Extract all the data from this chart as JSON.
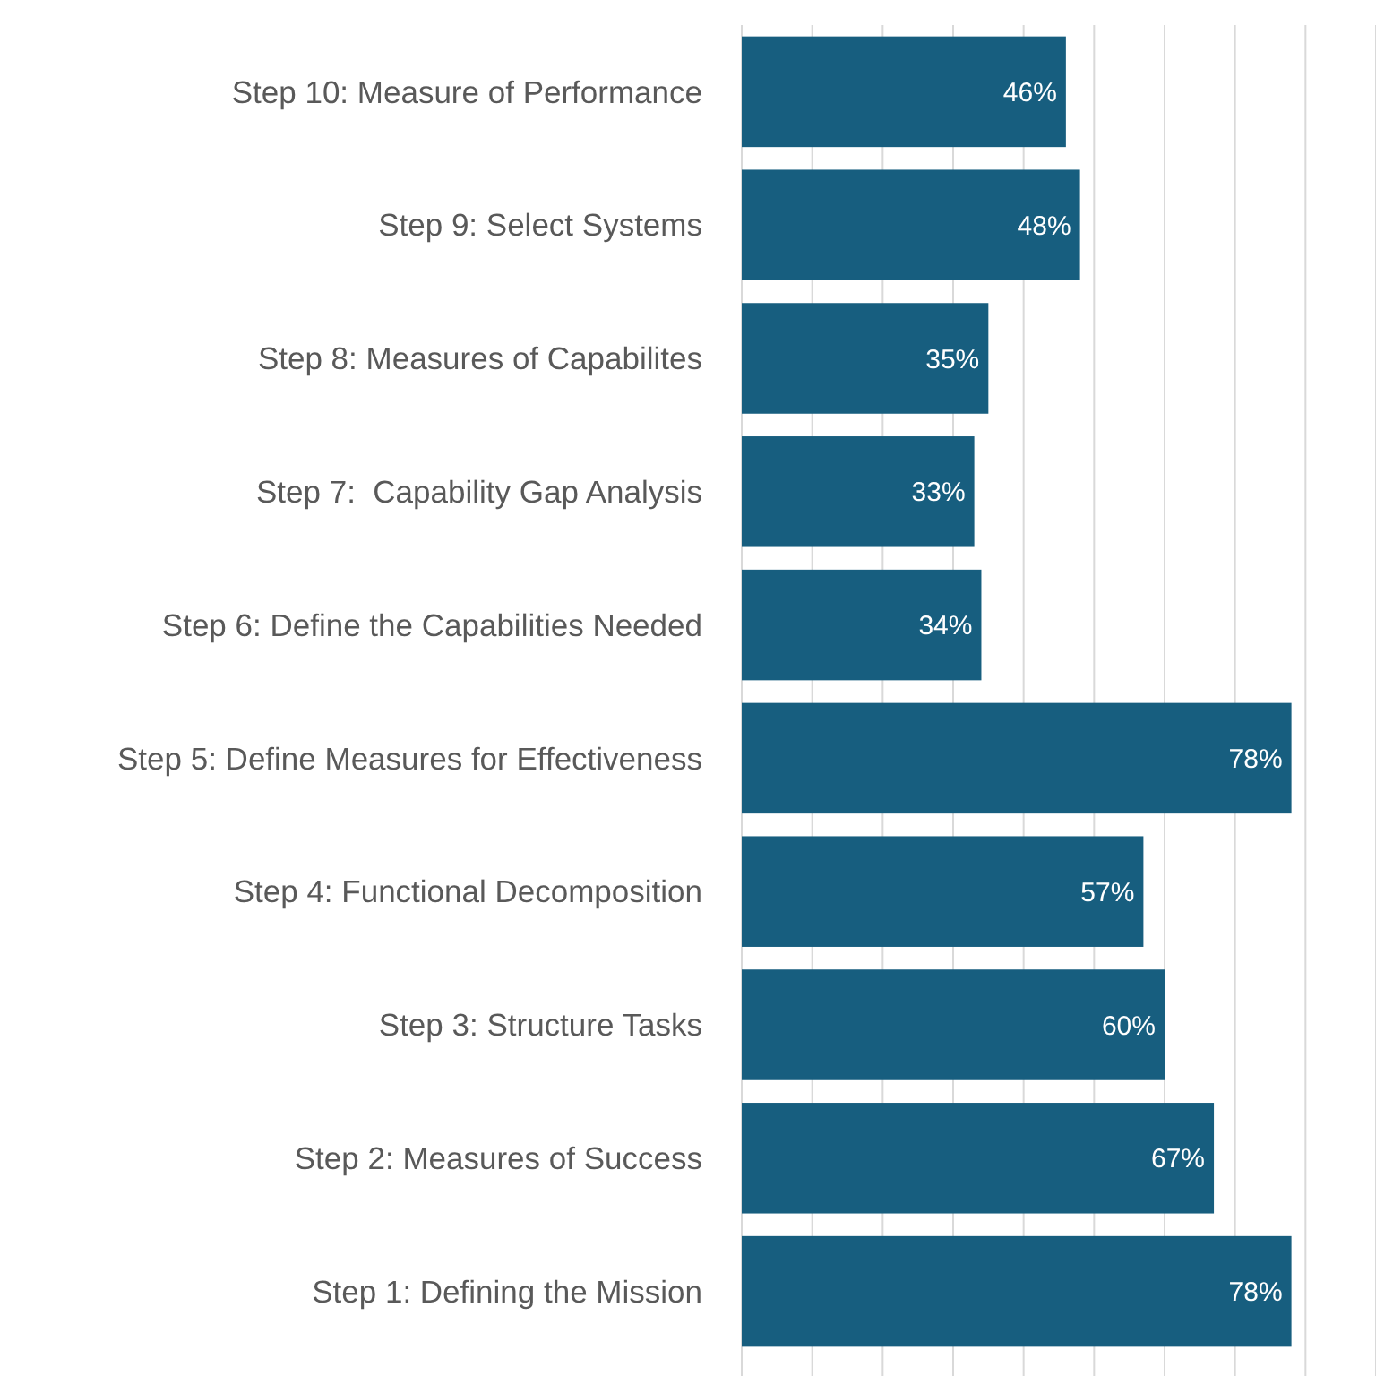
{
  "chart_data": {
    "type": "bar",
    "orientation": "horizontal",
    "categories": [
      "Step 10: Measure of Performance",
      "Step 9: Select Systems",
      "Step 8: Measures of Capabilites",
      "Step 7:  Capability Gap Analysis",
      "Step 6: Define the Capabilities Needed",
      "Step 5: Define Measures for Effectiveness",
      "Step 4: Functional Decomposition",
      "Step 3: Structure Tasks",
      "Step 2: Measures of Success",
      "Step 1: Defining the Mission"
    ],
    "values": [
      46,
      48,
      35,
      33,
      34,
      78,
      57,
      60,
      67,
      78
    ],
    "value_labels": [
      "46%",
      "48%",
      "35%",
      "33%",
      "34%",
      "78%",
      "57%",
      "60%",
      "67%",
      "78%"
    ],
    "color": "#175e7f",
    "xlim": [
      0,
      90
    ],
    "xticks": [
      {
        "value": 0,
        "label": null
      },
      {
        "value": 10,
        "label": null
      },
      {
        "value": 20,
        "label": null
      },
      {
        "value": 30,
        "label": null
      },
      {
        "value": 40,
        "label": null
      },
      {
        "value": 50,
        "label": null
      },
      {
        "value": 60,
        "label": null
      },
      {
        "value": 70,
        "label": null
      },
      {
        "value": 80,
        "label": null
      },
      {
        "value": 90,
        "label": null
      }
    ],
    "tick_labels": "y",
    "grid": "x"
  }
}
